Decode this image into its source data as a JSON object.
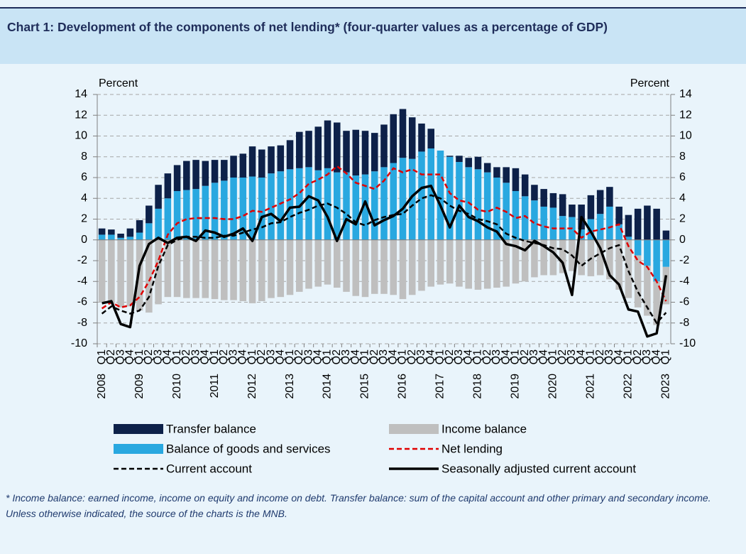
{
  "title": "Chart 1: Development of the components of net lending* (four-quarter values as a percentage of GDP)",
  "footnote": "* Income balance: earned income, income on equity and income on debt. Transfer balance: sum of the capital account and other primary and secondary income.",
  "source": "Unless otherwise indicated, the source of the charts is the MNB.",
  "chart_data": {
    "type": "bar",
    "ylabel": "Percent",
    "y2label": "Percent",
    "categories": [
      "Q1",
      "Q2",
      "Q3",
      "Q4",
      "Q1",
      "Q2",
      "Q3",
      "Q4",
      "Q1",
      "Q2",
      "Q3",
      "Q4",
      "Q1",
      "Q2",
      "Q3",
      "Q4",
      "Q1",
      "Q2",
      "Q3",
      "Q4",
      "Q1",
      "Q2",
      "Q3",
      "Q4",
      "Q1",
      "Q2",
      "Q3",
      "Q4",
      "Q1",
      "Q2",
      "Q3",
      "Q4",
      "Q1",
      "Q2",
      "Q3",
      "Q4",
      "Q1",
      "Q2",
      "Q3",
      "Q4",
      "Q1",
      "Q2",
      "Q3",
      "Q4",
      "Q1",
      "Q2",
      "Q3",
      "Q4",
      "Q1",
      "Q2",
      "Q3",
      "Q4",
      "Q1",
      "Q2",
      "Q3",
      "Q4",
      "Q1",
      "Q2",
      "Q3",
      "Q4",
      "Q1"
    ],
    "years": [
      "2008",
      "2009",
      "2010",
      "2011",
      "2012",
      "2013",
      "2014",
      "2015",
      "2016",
      "2017",
      "2018",
      "2019",
      "2020",
      "2021",
      "2022",
      "2023"
    ],
    "ylim": [
      -10,
      14
    ],
    "yticks": [
      -10,
      -8,
      -6,
      -4,
      -2,
      0,
      2,
      4,
      6,
      8,
      10,
      12,
      14
    ],
    "y2lim": [
      -10,
      14
    ],
    "y2ticks": [
      -10,
      -8,
      -6,
      -4,
      -2,
      0,
      2,
      4,
      6,
      8,
      10,
      12,
      14
    ],
    "grid": true,
    "stacked": true,
    "series": [
      {
        "name": "Balance of goods and services",
        "type": "bar",
        "color": "#29a8e0",
        "values": [
          0.5,
          0.5,
          0.2,
          0.3,
          0.7,
          1.6,
          3.0,
          4.0,
          4.7,
          4.8,
          4.9,
          5.2,
          5.5,
          5.7,
          6.0,
          6.0,
          6.1,
          6.0,
          6.4,
          6.6,
          6.8,
          6.9,
          7.0,
          6.7,
          6.9,
          6.5,
          6.5,
          6.2,
          6.3,
          6.6,
          7.0,
          7.4,
          7.9,
          7.8,
          8.5,
          8.8,
          8.6,
          8.0,
          7.5,
          7.0,
          6.8,
          6.5,
          6.0,
          5.5,
          4.7,
          4.2,
          3.8,
          3.2,
          3.1,
          2.3,
          2.2,
          1.0,
          2.0,
          2.5,
          3.2,
          1.5,
          0.3,
          -1.5,
          -2.5,
          -4.0,
          -2.6
        ]
      },
      {
        "name": "Transfer balance",
        "type": "bar",
        "color": "#0d2149",
        "values": [
          0.6,
          0.5,
          0.4,
          0.8,
          1.2,
          1.7,
          2.3,
          2.4,
          2.5,
          2.8,
          2.8,
          2.4,
          2.2,
          2.0,
          2.1,
          2.3,
          2.9,
          2.7,
          2.6,
          2.5,
          2.8,
          3.5,
          3.5,
          4.2,
          4.6,
          4.8,
          4.0,
          4.4,
          4.2,
          3.7,
          4.1,
          4.7,
          4.7,
          4.0,
          2.7,
          1.9,
          0.0,
          0.1,
          0.6,
          0.9,
          1.2,
          0.9,
          1.0,
          1.5,
          2.2,
          2.1,
          1.5,
          1.7,
          1.4,
          2.1,
          1.2,
          2.4,
          2.3,
          2.3,
          1.9,
          1.7,
          2.1,
          3.0,
          3.3,
          3.0,
          0.9
        ]
      },
      {
        "name": "Income balance",
        "type": "bar",
        "color": "#bfbfbf",
        "values": [
          -6.0,
          -6.2,
          -6.5,
          -6.4,
          -6.8,
          -7.0,
          -6.2,
          -5.5,
          -5.5,
          -5.6,
          -5.6,
          -5.6,
          -5.7,
          -5.8,
          -5.8,
          -5.9,
          -6.1,
          -5.9,
          -5.6,
          -5.5,
          -5.3,
          -5.0,
          -4.7,
          -4.5,
          -4.3,
          -4.6,
          -5.0,
          -5.4,
          -5.5,
          -5.2,
          -5.2,
          -5.3,
          -5.7,
          -5.3,
          -4.9,
          -4.5,
          -4.3,
          -4.2,
          -4.5,
          -4.7,
          -4.8,
          -4.7,
          -4.6,
          -4.5,
          -4.2,
          -4.0,
          -3.6,
          -3.4,
          -3.4,
          -3.2,
          -3.0,
          -3.4,
          -3.5,
          -3.4,
          -3.8,
          -4.8,
          -5.6,
          -5.0,
          -4.8,
          -4.2,
          -3.6
        ]
      },
      {
        "name": "Net lending",
        "type": "line",
        "style": "dashed",
        "color": "#e00000",
        "values": [
          -6.6,
          -6.0,
          -6.5,
          -6.3,
          -5.5,
          -4.0,
          -2.0,
          0.5,
          1.6,
          2.0,
          2.1,
          2.1,
          2.1,
          2.0,
          2.0,
          2.3,
          2.8,
          2.7,
          3.1,
          3.5,
          3.9,
          4.5,
          5.4,
          5.8,
          6.3,
          7.1,
          6.4,
          5.5,
          5.2,
          4.9,
          5.7,
          6.9,
          6.5,
          6.8,
          6.3,
          6.3,
          6.3,
          4.5,
          3.8,
          3.6,
          2.9,
          2.7,
          3.1,
          2.7,
          2.1,
          2.3,
          1.6,
          1.3,
          1.1,
          1.1,
          1.1,
          0.2,
          0.8,
          1.0,
          1.2,
          1.5,
          -0.6,
          -2.0,
          -2.6,
          -4.0,
          -5.9
        ]
      },
      {
        "name": "Current account",
        "type": "line",
        "style": "dashed",
        "color": "#000000",
        "values": [
          -7.1,
          -6.4,
          -6.8,
          -7.1,
          -6.8,
          -5.5,
          -2.5,
          -0.5,
          0.0,
          0.3,
          0.3,
          0.2,
          0.2,
          0.4,
          0.4,
          0.7,
          1.0,
          1.2,
          1.6,
          1.7,
          2.2,
          2.6,
          2.9,
          3.3,
          3.5,
          3.1,
          2.5,
          1.7,
          1.4,
          1.9,
          2.2,
          2.4,
          2.5,
          3.3,
          4.0,
          4.3,
          4.0,
          3.3,
          2.8,
          2.5,
          2.0,
          1.8,
          1.5,
          0.6,
          0.2,
          -0.1,
          -0.3,
          -0.5,
          -0.8,
          -0.9,
          -1.5,
          -2.5,
          -1.8,
          -1.3,
          -0.8,
          -0.5,
          -3.0,
          -5.0,
          -6.5,
          -8.0,
          -7.0
        ]
      },
      {
        "name": "Seasonally adjusted current account",
        "type": "line",
        "style": "solid",
        "color": "#000000",
        "values": [
          -6.1,
          -5.9,
          -8.1,
          -8.4,
          -2.5,
          -0.4,
          0.2,
          -0.3,
          0.2,
          0.3,
          -0.1,
          0.9,
          0.7,
          0.3,
          0.6,
          1.1,
          -0.1,
          2.2,
          2.5,
          1.8,
          3.1,
          3.2,
          4.2,
          3.8,
          2.2,
          -0.1,
          2.0,
          1.5,
          3.7,
          1.4,
          1.9,
          2.3,
          3.0,
          4.2,
          5.0,
          5.2,
          3.3,
          1.2,
          3.3,
          2.2,
          1.8,
          1.2,
          0.8,
          -0.4,
          -0.6,
          -1.0,
          -0.1,
          -0.6,
          -1.2,
          -2.2,
          -5.3,
          2.2,
          0.8,
          -0.8,
          -3.4,
          -4.3,
          -6.7,
          -6.9,
          -9.3,
          -9.0,
          -3.4
        ]
      }
    ]
  }
}
